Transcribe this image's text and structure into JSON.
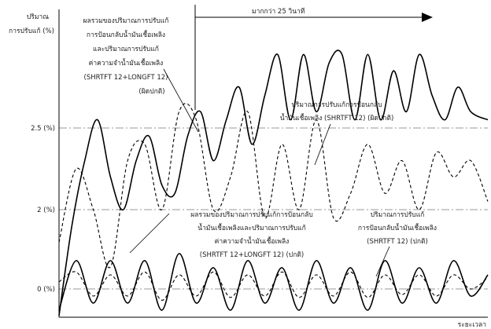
{
  "chart_data": {
    "type": "line",
    "y_axis_title": [
      "ปริมาณ",
      "การปรับแก้ (%)"
    ],
    "x_axis_title": "ระยะเวลา",
    "y_ticks": [
      {
        "label": "2.5 (%)",
        "value": 2.5
      },
      {
        "label": "2 (%)",
        "value": 2
      },
      {
        "label": "0 (%)",
        "value": 0
      }
    ],
    "arrow_label": "มากกว่า 25 วินาที",
    "annotations": {
      "total_abnormal": [
        "ผลรวมของปริมาณการปรับแก้",
        "การป้อนกลับน้ำมันเชื้อเพลิง",
        "และปริมาณการปรับแก้",
        "ค่าความจำน้ำมันเชื้อเพลิง",
        "(SHRTFT 12+LONGFT 12)",
        "(ผิดปกติ)"
      ],
      "feedback_abnormal": [
        "ปริมาณการปรับแก้การป้อนกลับ",
        "น้ำมันเชื้อเพลิง (SHRTFT 12) (ผิดปกติ)"
      ],
      "total_normal": [
        "ผลรวมของปริมาณการปรับแก้การป้อนกลับ",
        "น้ำมันเชื้อเพลิงและปริมาณการปรับแก้",
        "ค่าความจำน้ำมันเชื้อเพลิง",
        "(SHRTFT 12+LONGFT 12) (ปกติ)"
      ],
      "feedback_normal": [
        "ปริมาณการปรับแก้",
        "การป้อนกลับน้ำมันเชื้อเพลิง",
        "(SHRTFT 12) (ปกติ)"
      ]
    },
    "series": [
      {
        "style": "solid",
        "x": [
          0,
          0.03,
          0.06,
          0.09,
          0.12,
          0.15,
          0.18,
          0.21,
          0.24,
          0.27,
          0.3,
          0.33,
          0.36,
          0.39,
          0.42,
          0.45,
          0.48,
          0.51,
          0.54,
          0.57,
          0.6,
          0.63,
          0.66,
          0.69,
          0.72,
          0.75,
          0.78,
          0.81,
          0.84,
          0.87,
          0.9,
          0.93,
          0.96,
          1.0
        ],
        "y": [
          1.35,
          1.9,
          2.3,
          2.55,
          2.2,
          2.0,
          2.3,
          2.45,
          2.15,
          2.1,
          2.45,
          2.6,
          2.3,
          2.55,
          2.75,
          2.4,
          2.7,
          2.95,
          2.55,
          2.95,
          2.6,
          2.9,
          2.95,
          2.55,
          2.95,
          2.55,
          2.85,
          2.6,
          2.95,
          2.7,
          2.55,
          2.75,
          2.6,
          2.55
        ]
      },
      {
        "style": "dashed",
        "x": [
          0,
          0.04,
          0.08,
          0.12,
          0.16,
          0.2,
          0.24,
          0.28,
          0.32,
          0.36,
          0.4,
          0.44,
          0.48,
          0.52,
          0.56,
          0.6,
          0.64,
          0.68,
          0.72,
          0.76,
          0.8,
          0.84,
          0.88,
          0.92,
          0.96,
          1.0
        ],
        "y": [
          1.8,
          2.25,
          2.0,
          1.65,
          2.3,
          2.4,
          2.0,
          2.6,
          2.55,
          2.0,
          2.2,
          2.6,
          1.95,
          2.4,
          2.0,
          2.55,
          1.95,
          2.1,
          2.4,
          2.1,
          2.3,
          2.0,
          2.35,
          2.2,
          2.3,
          2.05
        ]
      },
      {
        "style": "solid",
        "x": [
          0,
          0.04,
          0.08,
          0.12,
          0.16,
          0.2,
          0.24,
          0.28,
          0.32,
          0.36,
          0.4,
          0.44,
          0.48,
          0.52,
          0.56,
          0.6,
          0.64,
          0.68,
          0.72,
          0.76,
          0.8,
          0.84,
          0.88,
          0.92,
          0.96,
          1.0
        ],
        "y": [
          -0.15,
          0.2,
          -0.1,
          0.2,
          -0.1,
          0.2,
          -0.15,
          0.25,
          -0.1,
          0.15,
          -0.15,
          0.2,
          -0.1,
          0.15,
          -0.15,
          0.2,
          -0.1,
          0.15,
          -0.15,
          0.2,
          -0.1,
          0.15,
          -0.1,
          0.2,
          -0.05,
          0.1
        ]
      },
      {
        "style": "dashed",
        "x": [
          0,
          0.04,
          0.08,
          0.12,
          0.16,
          0.2,
          0.24,
          0.28,
          0.32,
          0.36,
          0.4,
          0.44,
          0.48,
          0.52,
          0.56,
          0.6,
          0.64,
          0.68,
          0.72,
          0.76,
          0.8,
          0.84,
          0.88,
          0.92,
          0.96,
          1.0
        ],
        "y": [
          0.05,
          0.12,
          -0.05,
          0.1,
          -0.05,
          0.12,
          -0.08,
          0.1,
          -0.05,
          0.12,
          -0.06,
          0.1,
          -0.05,
          0.12,
          -0.06,
          0.1,
          -0.05,
          0.12,
          -0.06,
          0.1,
          -0.04,
          0.1,
          -0.05,
          0.1,
          0.0,
          0.08
        ]
      }
    ]
  }
}
